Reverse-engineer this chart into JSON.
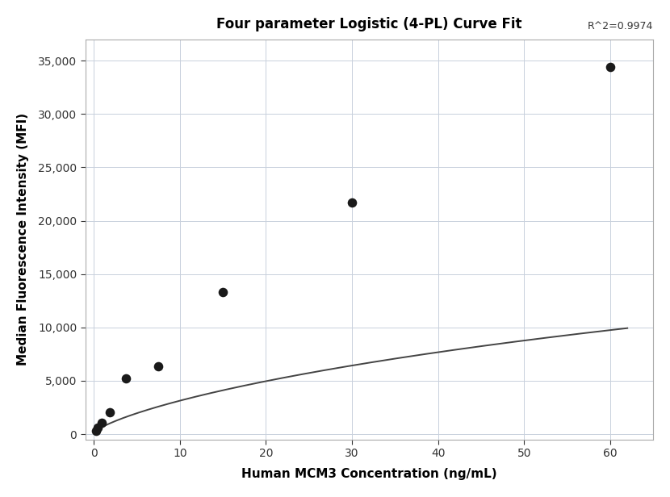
{
  "title": "Four parameter Logistic (4-PL) Curve Fit",
  "xlabel": "Human MCM3 Concentration (ng/mL)",
  "ylabel": "Median Fluorescence Intensity (MFI)",
  "r_squared": "R^2=0.9974",
  "scatter_x": [
    0.23,
    0.47,
    0.94,
    1.875,
    3.75,
    7.5,
    15.0,
    30.0,
    60.0
  ],
  "scatter_y": [
    320,
    600,
    1050,
    2050,
    5250,
    6350,
    13300,
    21700,
    34400
  ],
  "xlim": [
    -1,
    65
  ],
  "ylim": [
    -500,
    37000
  ],
  "xticks": [
    0,
    10,
    20,
    30,
    40,
    50,
    60
  ],
  "yticks": [
    0,
    5000,
    10000,
    15000,
    20000,
    25000,
    30000,
    35000
  ],
  "background_color": "#ffffff",
  "grid_color": "#c8d0dc",
  "scatter_color": "#1a1a1a",
  "line_color": "#444444",
  "scatter_size": 70,
  "line_width": 1.4,
  "title_fontsize": 12,
  "label_fontsize": 11,
  "tick_fontsize": 10
}
